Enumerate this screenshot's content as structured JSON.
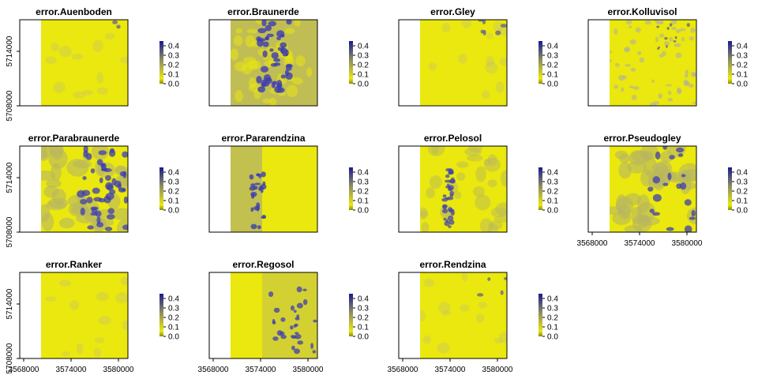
{
  "chart_data": {
    "type": "heatmap",
    "panels": [
      {
        "title": "error.Auenboden",
        "pattern": "flat",
        "blue": 0.05
      },
      {
        "title": "error.Braunerde",
        "pattern": "tan",
        "blue": 0.55
      },
      {
        "title": "error.Gley",
        "pattern": "flat",
        "blue": 0.15
      },
      {
        "title": "error.Kolluvisol",
        "pattern": "speckle",
        "blue": 0.15
      },
      {
        "title": "error.Parabraunerde",
        "pattern": "patchy",
        "blue": 0.6
      },
      {
        "title": "error.Pararendzina",
        "pattern": "leftband",
        "blue": 0.25
      },
      {
        "title": "error.Pelosol",
        "pattern": "river",
        "blue": 0.3
      },
      {
        "title": "error.Pseudogley",
        "pattern": "patchy",
        "blue": 0.25
      },
      {
        "title": "error.Ranker",
        "pattern": "flat",
        "blue": 0.0
      },
      {
        "title": "error.Regosol",
        "pattern": "regosol",
        "blue": 0.4
      },
      {
        "title": "error.Rendzina",
        "pattern": "flat",
        "blue": 0.1
      }
    ],
    "colorkey": {
      "min": 0.0,
      "max": 0.45,
      "labels": [
        "0.0",
        "0.1",
        "0.2",
        "0.3",
        "0.4"
      ],
      "low_color": "#8B8B00",
      "mid_color": "#EAE80E",
      "high_color": "#1A1A8C"
    },
    "x_ticks": [
      "3568000",
      "3574000",
      "3580000"
    ],
    "y_ticks": [
      "5708000",
      "5714000"
    ],
    "colors": {
      "base": "#EAE80E",
      "tan": "#B8B560",
      "blue": "#3D3DB0",
      "grey": "#B2B09A"
    }
  }
}
